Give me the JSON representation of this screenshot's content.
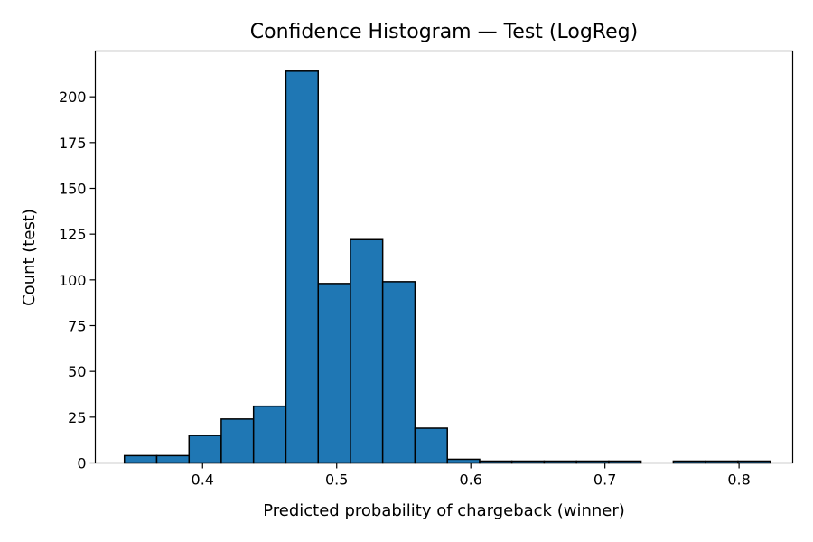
{
  "chart_data": {
    "type": "bar",
    "title": "Confidence Histogram — Test (LogReg)",
    "xlabel": "Predicted probability of chargeback (winner)",
    "ylabel": "Count (test)",
    "xlim": [
      0.32,
      0.84
    ],
    "ylim": [
      0,
      225
    ],
    "xticks": [
      "0.4",
      "0.5",
      "0.6",
      "0.7",
      "0.8"
    ],
    "xtick_values": [
      0.4,
      0.5,
      0.6,
      0.7,
      0.8
    ],
    "yticks": [
      "0",
      "25",
      "50",
      "75",
      "100",
      "125",
      "150",
      "175",
      "200"
    ],
    "ytick_values": [
      0,
      25,
      50,
      75,
      100,
      125,
      150,
      175,
      200
    ],
    "grid": false,
    "bar_color": "#1f77b4",
    "edge_color": "#000000",
    "bins": [
      {
        "x0": 0.3417,
        "x1": 0.3658,
        "count": 4
      },
      {
        "x0": 0.3658,
        "x1": 0.3899,
        "count": 4
      },
      {
        "x0": 0.3899,
        "x1": 0.4139,
        "count": 15
      },
      {
        "x0": 0.4139,
        "x1": 0.438,
        "count": 24
      },
      {
        "x0": 0.438,
        "x1": 0.4621,
        "count": 31
      },
      {
        "x0": 0.4621,
        "x1": 0.4862,
        "count": 214
      },
      {
        "x0": 0.4862,
        "x1": 0.5102,
        "count": 98
      },
      {
        "x0": 0.5102,
        "x1": 0.5343,
        "count": 122
      },
      {
        "x0": 0.5343,
        "x1": 0.5584,
        "count": 99
      },
      {
        "x0": 0.5584,
        "x1": 0.5825,
        "count": 19
      },
      {
        "x0": 0.5825,
        "x1": 0.6066,
        "count": 2
      },
      {
        "x0": 0.6066,
        "x1": 0.6306,
        "count": 1
      },
      {
        "x0": 0.6306,
        "x1": 0.6547,
        "count": 1
      },
      {
        "x0": 0.6547,
        "x1": 0.6788,
        "count": 1
      },
      {
        "x0": 0.6788,
        "x1": 0.7029,
        "count": 1
      },
      {
        "x0": 0.7029,
        "x1": 0.7269,
        "count": 1
      },
      {
        "x0": 0.7269,
        "x1": 0.751,
        "count": 0
      },
      {
        "x0": 0.751,
        "x1": 0.7751,
        "count": 1
      },
      {
        "x0": 0.7751,
        "x1": 0.7992,
        "count": 1
      },
      {
        "x0": 0.7992,
        "x1": 0.8233,
        "count": 1
      }
    ]
  }
}
